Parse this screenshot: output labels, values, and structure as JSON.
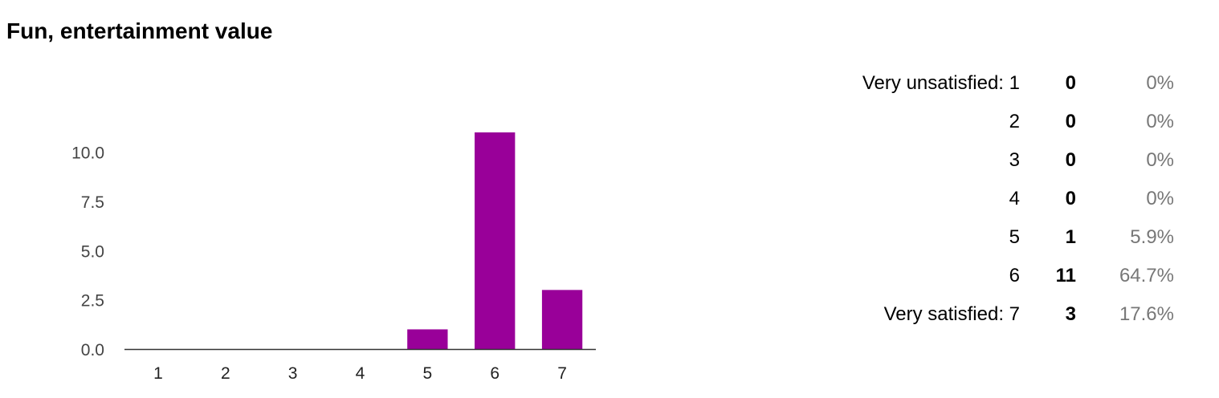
{
  "title": "Fun, entertainment value",
  "chart_data": {
    "type": "bar",
    "categories": [
      "1",
      "2",
      "3",
      "4",
      "5",
      "6",
      "7"
    ],
    "values": [
      0,
      0,
      0,
      0,
      1,
      11,
      3
    ],
    "title": "",
    "xlabel": "",
    "ylabel": "",
    "ylim": [
      0,
      11
    ],
    "yticks": [
      "0.0",
      "2.5",
      "5.0",
      "7.5",
      "10.0"
    ],
    "bar_color": "#990099",
    "grid": false,
    "legend": "none"
  },
  "summary": {
    "rows": [
      {
        "label": "Very unsatisfied: 1",
        "count": "0",
        "percent": "0%"
      },
      {
        "label": "2",
        "count": "0",
        "percent": "0%"
      },
      {
        "label": "3",
        "count": "0",
        "percent": "0%"
      },
      {
        "label": "4",
        "count": "0",
        "percent": "0%"
      },
      {
        "label": "5",
        "count": "1",
        "percent": "5.9%"
      },
      {
        "label": "6",
        "count": "11",
        "percent": "64.7%"
      },
      {
        "label": "Very satisfied: 7",
        "count": "3",
        "percent": "17.6%"
      }
    ]
  }
}
